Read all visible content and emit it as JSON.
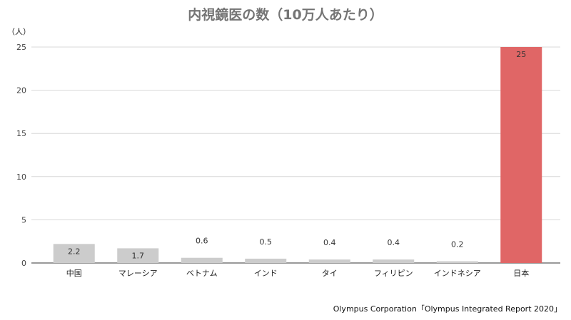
{
  "chart_data": {
    "type": "bar",
    "title": "内視鏡医の数（10万人あたり）",
    "ylabel": "（人）",
    "xlabel": "",
    "categories": [
      "中国",
      "マレーシア",
      "ベトナム",
      "インド",
      "タイ",
      "フィリピン",
      "インドネシア",
      "日本"
    ],
    "values": [
      2.2,
      1.7,
      0.6,
      0.5,
      0.4,
      0.4,
      0.2,
      25
    ],
    "data_labels": [
      "2.2",
      "1.7",
      "0.6",
      "0.5",
      "0.4",
      "0.4",
      "0.2",
      "25"
    ],
    "ylim": [
      0,
      25
    ],
    "yticks": [
      0,
      5,
      10,
      15,
      20,
      25
    ],
    "grid": true,
    "legend": "none",
    "colors": {
      "default_bar": "#cccccc",
      "highlight_bar": "#e06666",
      "highlight_index": 7,
      "gridline": "#d9d9d9",
      "title": "#757575"
    }
  },
  "source": "Olympus Corporation「Olympus Integrated Report 2020」"
}
